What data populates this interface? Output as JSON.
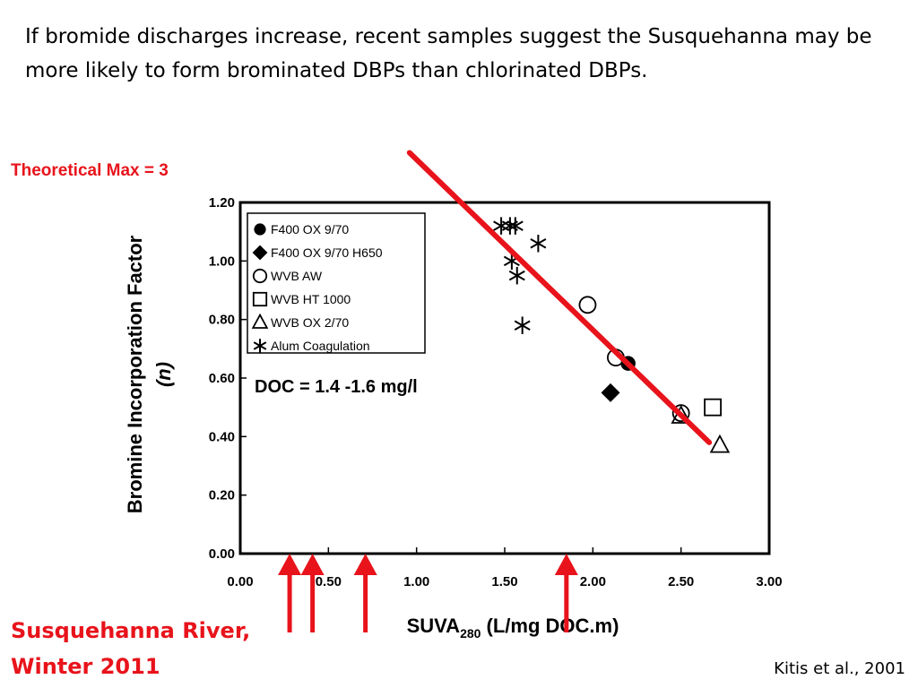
{
  "slide": {
    "headline": "If bromide discharges increase, recent samples suggest the Susquehanna may be more likely to form brominated DBPs than chlorinated DBPs.",
    "theoretical_max": "Theoretical Max = 3",
    "river_label_line1": "Susquehanna River,",
    "river_label_line2": "Winter 2011",
    "citation": "Kitis et al., 2001"
  },
  "colors": {
    "accent": "#e8131b",
    "ink": "#000000"
  },
  "chart_data": {
    "type": "scatter",
    "xlabel_main": "SUVA",
    "xlabel_sub": "280",
    "xlabel_unit": " (L/mg DOC.m)",
    "ylabel_line1": "Bromine Incorporation Factor",
    "ylabel_line2": "(n)",
    "xlim": [
      0,
      3
    ],
    "ylim": [
      0,
      1.2
    ],
    "x_ticks": [
      "0.00",
      "0.50",
      "1.00",
      "1.50",
      "2.00",
      "2.50",
      "3.00"
    ],
    "y_ticks": [
      "0.00",
      "0.20",
      "0.40",
      "0.60",
      "0.80",
      "1.00",
      "1.20"
    ],
    "legend_position": "top-left",
    "annotation": "DOC = 1.4 -1.6 mg/l",
    "series": [
      {
        "name": "F400 OX 9/70",
        "marker": "filled-circle",
        "points": [
          [
            2.2,
            0.65
          ]
        ]
      },
      {
        "name": "F400 OX 9/70 H650",
        "marker": "filled-diamond",
        "points": [
          [
            2.1,
            0.55
          ]
        ]
      },
      {
        "name": "WVB AW",
        "marker": "open-circle",
        "points": [
          [
            1.97,
            0.85
          ],
          [
            2.13,
            0.67
          ],
          [
            2.5,
            0.48
          ]
        ]
      },
      {
        "name": "WVB HT 1000",
        "marker": "open-square",
        "points": [
          [
            2.68,
            0.5
          ]
        ]
      },
      {
        "name": "WVB OX 2/70",
        "marker": "open-triangle",
        "points": [
          [
            2.72,
            0.37
          ],
          [
            2.5,
            0.47
          ]
        ]
      },
      {
        "name": "Alum Coagulation",
        "marker": "asterisk",
        "points": [
          [
            1.48,
            1.12
          ],
          [
            1.53,
            1.12
          ],
          [
            1.56,
            1.12
          ],
          [
            1.69,
            1.06
          ],
          [
            1.54,
            1.0
          ],
          [
            1.57,
            0.95
          ],
          [
            1.6,
            0.78
          ]
        ]
      }
    ],
    "trend_line": {
      "from": [
        0.96,
        1.37
      ],
      "to": [
        2.66,
        0.38
      ]
    },
    "sample_arrows_suva": [
      0.28,
      0.41,
      0.71,
      1.85
    ]
  }
}
